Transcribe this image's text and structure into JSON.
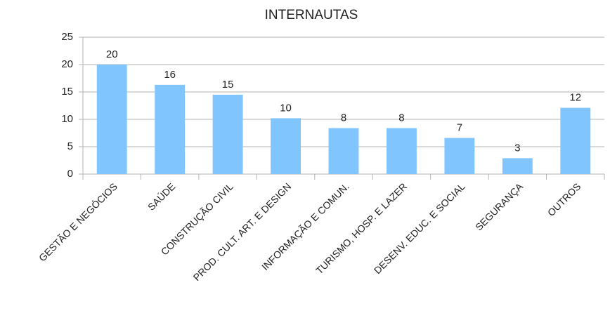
{
  "chart_data": {
    "type": "bar",
    "title": "INTERNAUTAS",
    "categories": [
      "GESTÃO E NEGÓCIOS",
      "SAÚDE",
      "CONSTRUÇÃO CIVIL",
      "PROD. CULT. ART. E DESIGN",
      "INFORMAÇÃO E COMUN.",
      "TURISMO, HOSP. E LAZER",
      "DESENV. EDUC. E SOCIAL",
      "SEGURANÇA",
      "OUTROS"
    ],
    "values": [
      20,
      16.3,
      14.5,
      10.2,
      8.4,
      8.4,
      6.6,
      2.9,
      12.1
    ],
    "value_labels": [
      "20",
      "16",
      "15",
      "10",
      "8",
      "8",
      "7",
      "3",
      "12"
    ],
    "color": "#81c5fe",
    "ylim": [
      0,
      25
    ],
    "yticks": [
      0,
      5,
      10,
      15,
      20,
      25
    ],
    "grid": true
  }
}
